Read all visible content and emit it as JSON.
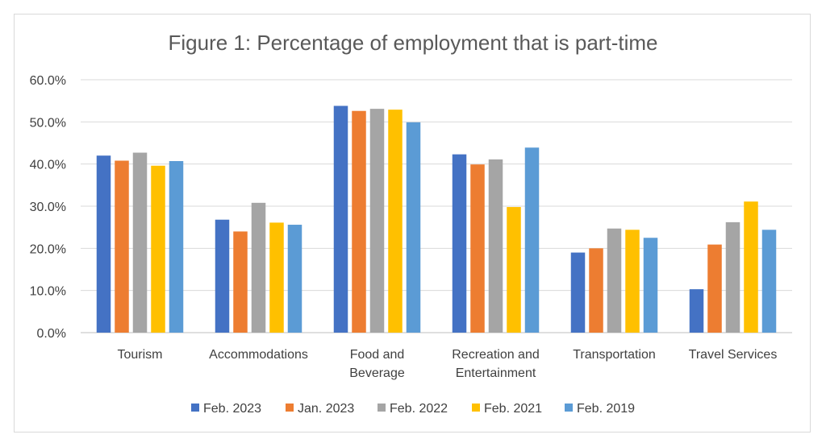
{
  "chart_data": {
    "type": "bar",
    "title": "Figure 1: Percentage of employment that is part-time",
    "categories": [
      [
        "Tourism"
      ],
      [
        "Accommodations"
      ],
      [
        "Food and",
        "Beverage"
      ],
      [
        "Recreation and",
        "Entertainment"
      ],
      [
        "Transportation"
      ],
      [
        "Travel Services"
      ]
    ],
    "series": [
      {
        "name": "Feb. 2023",
        "color": "#4472c4",
        "values": [
          42.0,
          26.8,
          53.8,
          42.3,
          19.0,
          10.3
        ]
      },
      {
        "name": "Jan. 2023",
        "color": "#ed7d31",
        "values": [
          40.8,
          24.0,
          52.6,
          39.9,
          20.0,
          20.9
        ]
      },
      {
        "name": "Feb. 2022",
        "color": "#a5a5a5",
        "values": [
          42.7,
          30.8,
          53.1,
          41.1,
          24.7,
          26.2
        ]
      },
      {
        "name": "Feb. 2021",
        "color": "#ffc000",
        "values": [
          39.6,
          26.1,
          52.9,
          29.8,
          24.4,
          31.1
        ]
      },
      {
        "name": "Feb. 2019",
        "color": "#5b9bd5",
        "values": [
          40.7,
          25.6,
          49.9,
          43.9,
          22.5,
          24.4
        ]
      }
    ],
    "yticks": [
      "0.0%",
      "10.0%",
      "20.0%",
      "30.0%",
      "40.0%",
      "50.0%",
      "60.0%"
    ],
    "ylim": [
      0,
      60
    ],
    "grid": true,
    "legend": "bottom"
  }
}
